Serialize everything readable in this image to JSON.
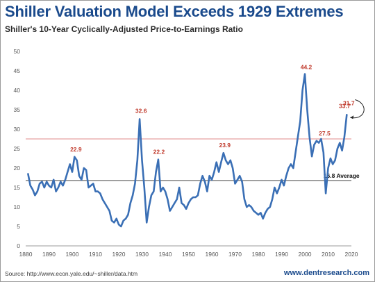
{
  "chart_data": {
    "type": "line",
    "title": "Shiller Valuation Model Exceeds 1929 Extremes",
    "subtitle": "Shiller's 10-Year Cyclically-Adjusted Price-to-Earnings Ratio",
    "xlabel": "",
    "ylabel": "",
    "xlim": [
      1880,
      2020
    ],
    "ylim": [
      0,
      50
    ],
    "x_ticks": [
      "1880",
      "1890",
      "1900",
      "1910",
      "1920",
      "1930",
      "1940",
      "1950",
      "1960",
      "1970",
      "1980",
      "1990",
      "2000",
      "2010",
      "2020"
    ],
    "y_ticks": [
      "0",
      "5",
      "10",
      "15",
      "20",
      "25",
      "30",
      "35",
      "40",
      "45",
      "50"
    ],
    "grid": false,
    "series": [
      {
        "color": "#3a6fb5",
        "points": [
          [
            1881,
            18.5
          ],
          [
            1882,
            15.5
          ],
          [
            1883,
            14.5
          ],
          [
            1884,
            13
          ],
          [
            1885,
            14
          ],
          [
            1886,
            16
          ],
          [
            1887,
            16.5
          ],
          [
            1888,
            15
          ],
          [
            1889,
            16.5
          ],
          [
            1890,
            15.5
          ],
          [
            1891,
            15
          ],
          [
            1892,
            17
          ],
          [
            1893,
            14
          ],
          [
            1894,
            15
          ],
          [
            1895,
            16.5
          ],
          [
            1896,
            15.5
          ],
          [
            1897,
            17
          ],
          [
            1898,
            19
          ],
          [
            1899,
            21
          ],
          [
            1900,
            19
          ],
          [
            1901,
            22.9
          ],
          [
            1902,
            22
          ],
          [
            1903,
            18
          ],
          [
            1904,
            17
          ],
          [
            1905,
            20
          ],
          [
            1906,
            19.5
          ],
          [
            1907,
            15
          ],
          [
            1908,
            15.5
          ],
          [
            1909,
            16
          ],
          [
            1910,
            14
          ],
          [
            1911,
            14
          ],
          [
            1912,
            13.5
          ],
          [
            1913,
            12
          ],
          [
            1914,
            11
          ],
          [
            1915,
            10
          ],
          [
            1916,
            9
          ],
          [
            1917,
            6.5
          ],
          [
            1918,
            6
          ],
          [
            1919,
            7
          ],
          [
            1920,
            5.5
          ],
          [
            1921,
            5
          ],
          [
            1922,
            6.5
          ],
          [
            1923,
            7
          ],
          [
            1924,
            8
          ],
          [
            1925,
            11
          ],
          [
            1926,
            13
          ],
          [
            1927,
            16
          ],
          [
            1928,
            22
          ],
          [
            1929,
            32.6
          ],
          [
            1930,
            22
          ],
          [
            1931,
            15
          ],
          [
            1932,
            6
          ],
          [
            1933,
            10
          ],
          [
            1934,
            13
          ],
          [
            1935,
            14
          ],
          [
            1936,
            19
          ],
          [
            1937,
            22.2
          ],
          [
            1938,
            14
          ],
          [
            1939,
            15
          ],
          [
            1940,
            14
          ],
          [
            1941,
            12
          ],
          [
            1942,
            9
          ],
          [
            1943,
            10
          ],
          [
            1944,
            11
          ],
          [
            1945,
            12
          ],
          [
            1946,
            15
          ],
          [
            1947,
            11
          ],
          [
            1948,
            10.5
          ],
          [
            1949,
            9.5
          ],
          [
            1950,
            11
          ],
          [
            1951,
            12
          ],
          [
            1952,
            12.5
          ],
          [
            1953,
            12.5
          ],
          [
            1954,
            13
          ],
          [
            1955,
            16
          ],
          [
            1956,
            18
          ],
          [
            1957,
            16.5
          ],
          [
            1958,
            14
          ],
          [
            1959,
            18
          ],
          [
            1960,
            17
          ],
          [
            1961,
            19
          ],
          [
            1962,
            21.5
          ],
          [
            1963,
            19
          ],
          [
            1964,
            21.5
          ],
          [
            1965,
            23.9
          ],
          [
            1966,
            22
          ],
          [
            1967,
            21
          ],
          [
            1968,
            22
          ],
          [
            1969,
            20
          ],
          [
            1970,
            16
          ],
          [
            1971,
            17
          ],
          [
            1972,
            18
          ],
          [
            1973,
            16.5
          ],
          [
            1974,
            12
          ],
          [
            1975,
            10
          ],
          [
            1976,
            10.5
          ],
          [
            1977,
            10
          ],
          [
            1978,
            9
          ],
          [
            1979,
            8.5
          ],
          [
            1980,
            8
          ],
          [
            1981,
            8.5
          ],
          [
            1982,
            7
          ],
          [
            1983,
            8.5
          ],
          [
            1984,
            9.5
          ],
          [
            1985,
            10
          ],
          [
            1986,
            12
          ],
          [
            1987,
            15
          ],
          [
            1988,
            13.5
          ],
          [
            1989,
            15
          ],
          [
            1990,
            17
          ],
          [
            1991,
            15.5
          ],
          [
            1992,
            18
          ],
          [
            1993,
            20
          ],
          [
            1994,
            21
          ],
          [
            1995,
            20
          ],
          [
            1996,
            24
          ],
          [
            1997,
            28
          ],
          [
            1998,
            32
          ],
          [
            1999,
            40
          ],
          [
            2000,
            44.2
          ],
          [
            2001,
            35
          ],
          [
            2002,
            28
          ],
          [
            2003,
            23
          ],
          [
            2004,
            26
          ],
          [
            2005,
            27
          ],
          [
            2006,
            26.5
          ],
          [
            2007,
            27.5
          ],
          [
            2008,
            24
          ],
          [
            2009,
            13.5
          ],
          [
            2010,
            20
          ],
          [
            2011,
            22.5
          ],
          [
            2012,
            21
          ],
          [
            2013,
            22
          ],
          [
            2014,
            25
          ],
          [
            2015,
            26.5
          ],
          [
            2016,
            24.5
          ],
          [
            2017,
            28
          ],
          [
            2018,
            33.7
          ]
        ]
      }
    ],
    "reference_lines": [
      {
        "value": 27.5,
        "color": "#e08a8a"
      },
      {
        "value": 16.8,
        "label": "16.8 Average",
        "color": "#4b4b4b"
      }
    ],
    "annotations": [
      {
        "text": "22.9",
        "x": 1901,
        "y": 22.9
      },
      {
        "text": "32.6",
        "x": 1929,
        "y": 32.6
      },
      {
        "text": "22.2",
        "x": 1937,
        "y": 22.2
      },
      {
        "text": "23.9",
        "x": 1965,
        "y": 23.9
      },
      {
        "text": "44.2",
        "x": 2000,
        "y": 44.2
      },
      {
        "text": "27.5",
        "x": 2007,
        "y": 27.5
      },
      {
        "text": "33.7",
        "x": 2018,
        "y": 33.7
      },
      {
        "text": "31.7",
        "x": 2018,
        "y": 31.7
      }
    ]
  },
  "footer": {
    "source": "Source: http://www.econ.yale.edu/~shiller/data.htm",
    "website": "www.dentresearch.com"
  }
}
